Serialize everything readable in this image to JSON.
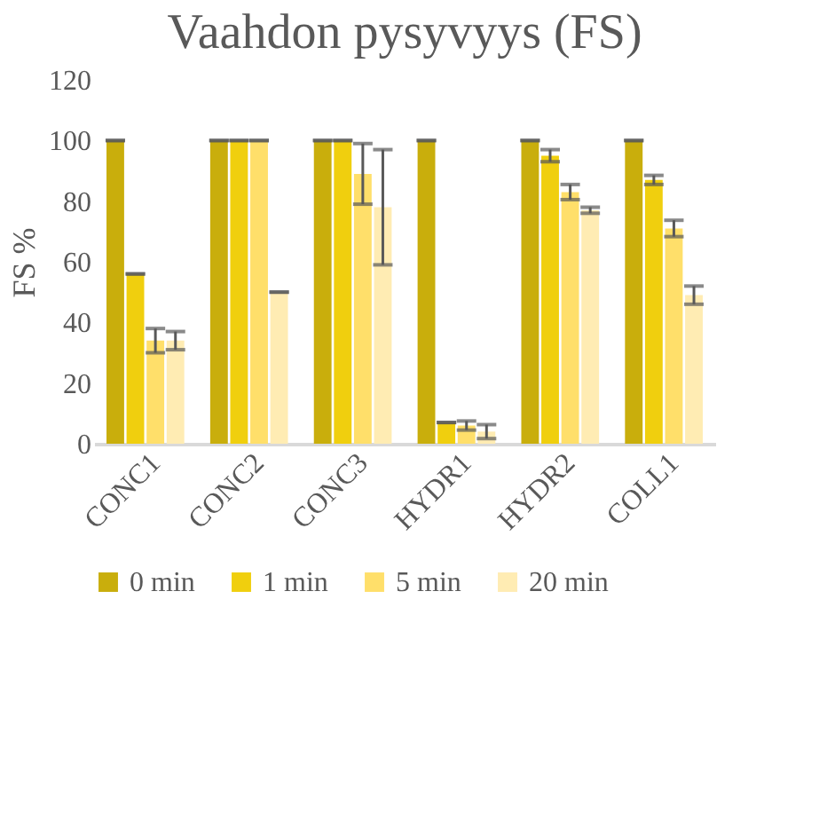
{
  "chart_data": {
    "type": "bar",
    "title": "Vaahdon pysyvyys (FS)",
    "ylabel": "FS  %",
    "categories": [
      "CONC1",
      "CONC2",
      "CONC3",
      "HYDR1",
      "HYDR2",
      "COLL1"
    ],
    "series": [
      {
        "name": "0 min",
        "color": "#c9ae0c",
        "values": [
          100,
          100,
          100,
          100,
          100,
          100
        ],
        "errors": [
          0,
          0,
          0,
          0,
          0,
          0
        ]
      },
      {
        "name": "1 min",
        "color": "#f0cf0e",
        "values": [
          56,
          100,
          100,
          7,
          95,
          87
        ],
        "errors": [
          0,
          0,
          0,
          0,
          2,
          1.5
        ]
      },
      {
        "name": "5 min",
        "color": "#ffdf6a",
        "values": [
          34,
          100,
          89,
          6,
          83,
          71
        ],
        "errors": [
          4,
          0,
          10,
          1.5,
          2.5,
          2.7
        ]
      },
      {
        "name": "20 min",
        "color": "#ffecb3",
        "values": [
          34,
          50,
          78,
          4,
          77,
          49
        ],
        "errors": [
          3,
          0,
          19,
          2.3,
          1,
          3
        ]
      }
    ],
    "ylim": [
      0,
      120
    ],
    "yticks": [
      0,
      20,
      40,
      60,
      80,
      100,
      120
    ],
    "grid": false,
    "legend": "bottom"
  }
}
